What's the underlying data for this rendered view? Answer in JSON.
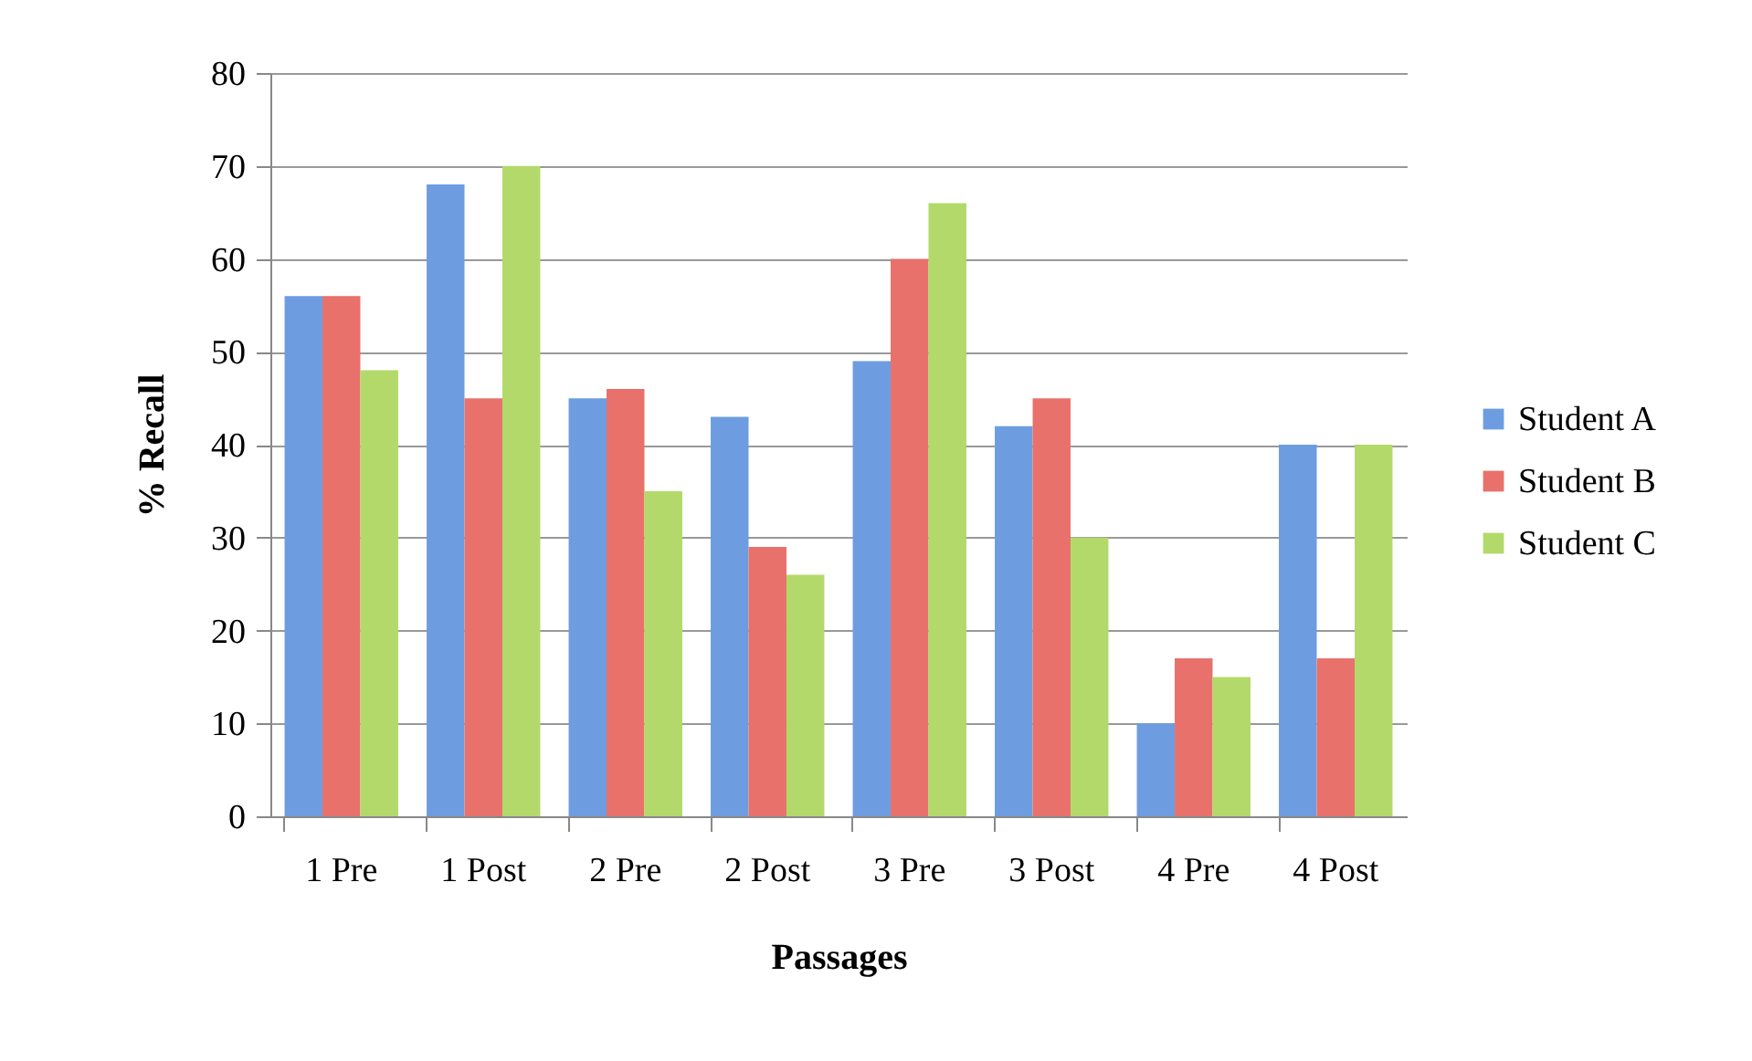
{
  "chart_data": {
    "type": "bar",
    "xlabel": "Passages",
    "ylabel": "% Recall",
    "categories": [
      "1 Pre",
      "1 Post",
      "2 Pre",
      "2 Post",
      "3 Pre",
      "3 Post",
      "4 Pre",
      "4 Post"
    ],
    "series": [
      {
        "name": "Student A",
        "color": "#6d9de0",
        "values": [
          56,
          68,
          45,
          43,
          49,
          42,
          10,
          40
        ]
      },
      {
        "name": "Student B",
        "color": "#e8716b",
        "values": [
          56,
          45,
          46,
          29,
          60,
          45,
          17,
          17
        ]
      },
      {
        "name": "Student C",
        "color": "#b3d96b",
        "values": [
          48,
          70,
          35,
          26,
          66,
          30,
          15,
          40
        ]
      }
    ],
    "ylim": [
      0,
      80
    ],
    "yticks": [
      0,
      10,
      20,
      30,
      40,
      50,
      60,
      70,
      80
    ],
    "grid": "y",
    "legend": "right"
  }
}
